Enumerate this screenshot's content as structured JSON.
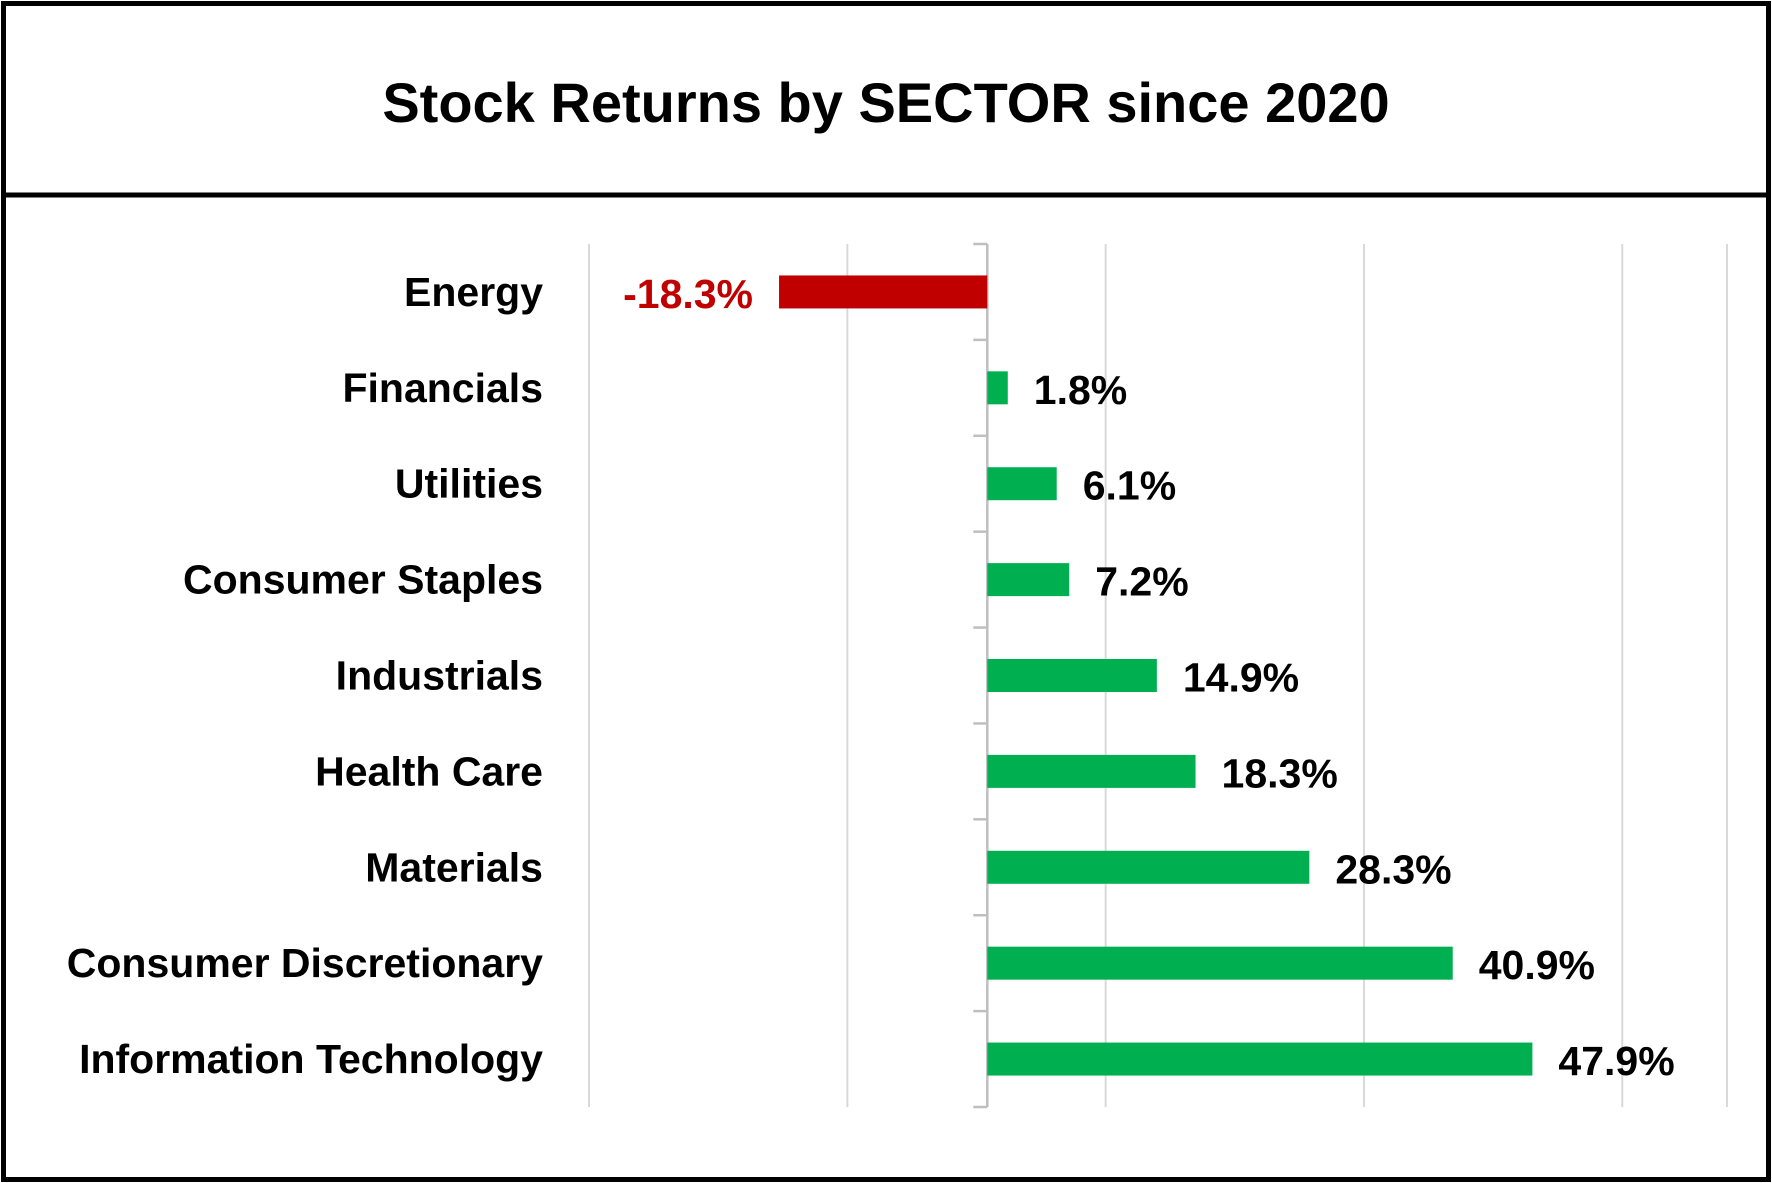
{
  "chart_data": {
    "type": "bar",
    "orientation": "horizontal",
    "title": "Stock Returns by SECTOR since 2020",
    "categories": [
      "Energy",
      "Financials",
      "Utilities",
      "Consumer Staples",
      "Industrials",
      "Health Care",
      "Materials",
      "Consumer Discretionary",
      "Information Technology"
    ],
    "values": [
      -18.3,
      1.8,
      6.1,
      7.2,
      14.9,
      18.3,
      28.3,
      40.9,
      47.9
    ],
    "value_labels": [
      "-18.3%",
      "1.8%",
      "6.1%",
      "7.2%",
      "14.9%",
      "18.3%",
      "28.3%",
      "40.9%",
      "47.9%"
    ],
    "unit": "%",
    "xlim": [
      -35,
      65
    ],
    "grid": "vertical",
    "legend": "none",
    "colors": {
      "positive": "#00b050",
      "negative": "#c00000",
      "negative_label": "#c00000",
      "positive_label": "#000000",
      "grid": "#d9d9d9",
      "frame": "#000000"
    }
  }
}
